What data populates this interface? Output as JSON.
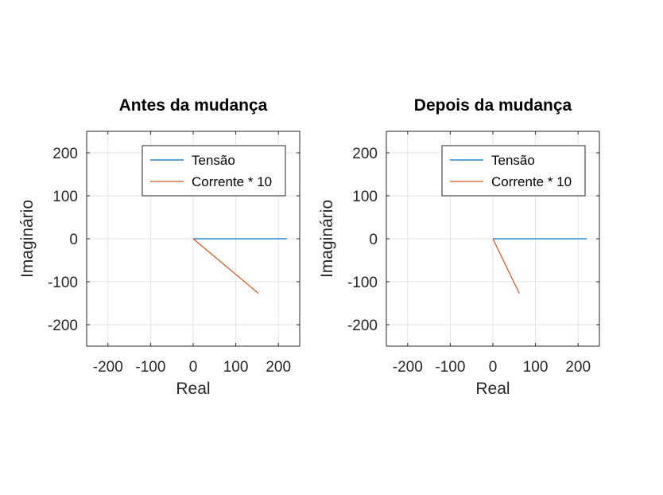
{
  "chart_data": [
    {
      "type": "line",
      "title": "Antes da mudança",
      "xlabel": "Real",
      "ylabel": "Imaginário",
      "xlim": [
        -250,
        250
      ],
      "ylim": [
        -250,
        250
      ],
      "xticks": [
        -200,
        -100,
        0,
        100,
        200
      ],
      "yticks": [
        -200,
        -100,
        0,
        100,
        200
      ],
      "grid": true,
      "legend_position": "top-right",
      "series": [
        {
          "name": "Tensão",
          "color": "#0072BD",
          "x": [
            0,
            220
          ],
          "y": [
            0,
            0
          ]
        },
        {
          "name": "Corrente * 10",
          "color": "#D95319",
          "x": [
            0,
            153
          ],
          "y": [
            0,
            -127
          ]
        }
      ]
    },
    {
      "type": "line",
      "title": "Depois da mudança",
      "xlabel": "Real",
      "ylabel": "Imaginário",
      "xlim": [
        -250,
        250
      ],
      "ylim": [
        -250,
        250
      ],
      "xticks": [
        -200,
        -100,
        0,
        100,
        200
      ],
      "yticks": [
        -200,
        -100,
        0,
        100,
        200
      ],
      "grid": true,
      "legend_position": "top-right",
      "series": [
        {
          "name": "Tensão",
          "color": "#0072BD",
          "x": [
            0,
            220
          ],
          "y": [
            0,
            0
          ]
        },
        {
          "name": "Corrente * 10",
          "color": "#D95319",
          "x": [
            0,
            62
          ],
          "y": [
            0,
            -127
          ]
        }
      ]
    }
  ]
}
